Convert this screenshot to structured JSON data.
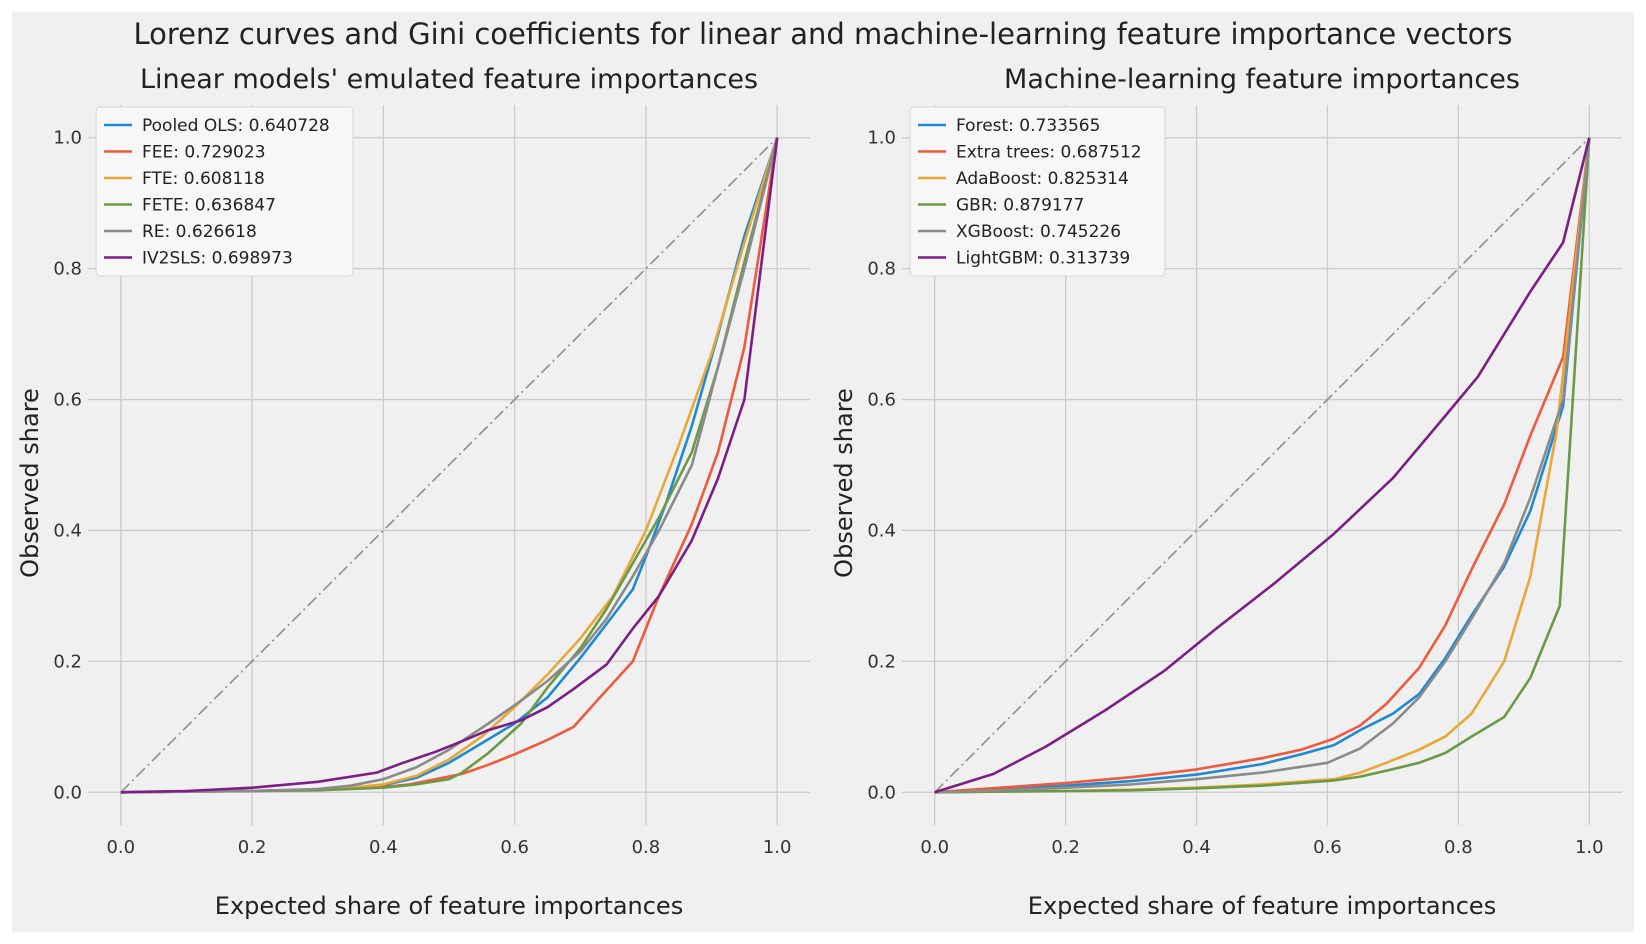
{
  "figure": {
    "title": "Lorenz curves and Gini coefficients for linear and machine-learning feature importance vectors",
    "colors": {
      "background": "#f0f0f0",
      "grid": "#cbcbcb",
      "diagonal": "#8e8e8e"
    }
  },
  "chart_data": [
    {
      "type": "line",
      "title": "Linear models' emulated feature importances",
      "xlabel": "Expected share of feature importances",
      "ylabel": "Observed share",
      "xlim": [
        -0.05,
        1.05
      ],
      "ylim": [
        -0.05,
        1.05
      ],
      "xticks": [
        0.0,
        0.2,
        0.4,
        0.6,
        0.8,
        1.0
      ],
      "yticks": [
        0.0,
        0.2,
        0.4,
        0.6,
        0.8,
        1.0
      ],
      "xtick_labels": [
        "0.0",
        "0.2",
        "0.4",
        "0.6",
        "0.8",
        "1.0"
      ],
      "ytick_labels": [
        "0.0",
        "0.2",
        "0.4",
        "0.6",
        "0.8",
        "1.0"
      ],
      "legend_position": "upper-left",
      "diagonal": {
        "x": [
          0,
          1
        ],
        "y": [
          0,
          1
        ],
        "style": "dash-dot"
      },
      "series": [
        {
          "name": "Pooled OLS: 0.640728",
          "color": "#1f8ad2",
          "x": [
            0,
            0.1,
            0.2,
            0.3,
            0.35,
            0.4,
            0.45,
            0.5,
            0.55,
            0.6,
            0.65,
            0.7,
            0.75,
            0.78,
            0.8,
            0.83,
            0.87,
            0.91,
            0.95,
            1.0
          ],
          "y": [
            0,
            0.001,
            0.002,
            0.004,
            0.007,
            0.011,
            0.022,
            0.045,
            0.075,
            0.105,
            0.145,
            0.205,
            0.27,
            0.31,
            0.36,
            0.44,
            0.56,
            0.7,
            0.85,
            1.0
          ]
        },
        {
          "name": "FEE: 0.729023",
          "color": "#ef5a3c",
          "x": [
            0,
            0.1,
            0.2,
            0.3,
            0.4,
            0.44,
            0.52,
            0.56,
            0.6,
            0.65,
            0.69,
            0.73,
            0.78,
            0.82,
            0.87,
            0.91,
            0.95,
            1.0
          ],
          "y": [
            0,
            0.001,
            0.002,
            0.004,
            0.008,
            0.012,
            0.028,
            0.042,
            0.058,
            0.08,
            0.1,
            0.145,
            0.2,
            0.3,
            0.41,
            0.52,
            0.68,
            1.0
          ]
        },
        {
          "name": "FTE: 0.608118",
          "color": "#e8a838",
          "x": [
            0,
            0.1,
            0.2,
            0.3,
            0.35,
            0.4,
            0.45,
            0.5,
            0.55,
            0.6,
            0.65,
            0.7,
            0.75,
            0.8,
            0.85,
            0.9,
            0.95,
            1.0
          ],
          "y": [
            0,
            0.001,
            0.002,
            0.004,
            0.007,
            0.012,
            0.025,
            0.05,
            0.085,
            0.13,
            0.18,
            0.235,
            0.3,
            0.4,
            0.53,
            0.67,
            0.84,
            1.0
          ]
        },
        {
          "name": "FETE: 0.636847",
          "color": "#6b9a47",
          "x": [
            0,
            0.1,
            0.2,
            0.3,
            0.4,
            0.45,
            0.5,
            0.52,
            0.56,
            0.61,
            0.65,
            0.7,
            0.74,
            0.78,
            0.82,
            0.87,
            0.91,
            0.95,
            1.0
          ],
          "y": [
            0,
            0.001,
            0.002,
            0.003,
            0.007,
            0.012,
            0.02,
            0.03,
            0.06,
            0.105,
            0.16,
            0.22,
            0.28,
            0.35,
            0.42,
            0.52,
            0.65,
            0.81,
            1.0
          ]
        },
        {
          "name": "RE: 0.626618",
          "color": "#8b8b8b",
          "x": [
            0,
            0.1,
            0.2,
            0.3,
            0.35,
            0.4,
            0.45,
            0.5,
            0.56,
            0.61,
            0.65,
            0.7,
            0.74,
            0.78,
            0.82,
            0.87,
            0.91,
            0.95,
            1.0
          ],
          "y": [
            0,
            0.001,
            0.002,
            0.005,
            0.01,
            0.02,
            0.038,
            0.065,
            0.105,
            0.14,
            0.17,
            0.215,
            0.265,
            0.33,
            0.4,
            0.5,
            0.65,
            0.8,
            1.0
          ]
        },
        {
          "name": "IV2SLS: 0.698973",
          "color": "#7b1f86",
          "x": [
            0,
            0.05,
            0.1,
            0.2,
            0.3,
            0.39,
            0.43,
            0.48,
            0.52,
            0.56,
            0.61,
            0.65,
            0.69,
            0.74,
            0.78,
            0.82,
            0.87,
            0.91,
            0.95,
            1.0
          ],
          "y": [
            0,
            0.001,
            0.002,
            0.007,
            0.016,
            0.03,
            0.045,
            0.062,
            0.078,
            0.095,
            0.11,
            0.13,
            0.158,
            0.195,
            0.25,
            0.3,
            0.385,
            0.48,
            0.6,
            1.0
          ]
        }
      ],
      "legend": [
        {
          "label": "Pooled OLS: 0.640728",
          "color": "#1f8ad2"
        },
        {
          "label": "FEE: 0.729023",
          "color": "#ef5a3c"
        },
        {
          "label": "FTE: 0.608118",
          "color": "#e8a838"
        },
        {
          "label": "FETE: 0.636847",
          "color": "#6b9a47"
        },
        {
          "label": "RE: 0.626618",
          "color": "#8b8b8b"
        },
        {
          "label": "IV2SLS: 0.698973",
          "color": "#7b1f86"
        }
      ]
    },
    {
      "type": "line",
      "title": "Machine-learning feature importances",
      "xlabel": "Expected share of feature importances",
      "ylabel": "Observed share",
      "xlim": [
        -0.05,
        1.05
      ],
      "ylim": [
        -0.05,
        1.05
      ],
      "xticks": [
        0.0,
        0.2,
        0.4,
        0.6,
        0.8,
        1.0
      ],
      "yticks": [
        0.0,
        0.2,
        0.4,
        0.6,
        0.8,
        1.0
      ],
      "xtick_labels": [
        "0.0",
        "0.2",
        "0.4",
        "0.6",
        "0.8",
        "1.0"
      ],
      "ytick_labels": [
        "0.0",
        "0.2",
        "0.4",
        "0.6",
        "0.8",
        "1.0"
      ],
      "legend_position": "upper-left",
      "diagonal": {
        "x": [
          0,
          1
        ],
        "y": [
          0,
          1
        ],
        "style": "dash-dot"
      },
      "series": [
        {
          "name": "Forest: 0.733565",
          "color": "#1f8ad2",
          "x": [
            0,
            0.1,
            0.2,
            0.3,
            0.4,
            0.5,
            0.56,
            0.61,
            0.65,
            0.7,
            0.74,
            0.78,
            0.82,
            0.87,
            0.91,
            0.96,
            1.0
          ],
          "y": [
            0,
            0.005,
            0.01,
            0.017,
            0.027,
            0.043,
            0.058,
            0.072,
            0.095,
            0.12,
            0.15,
            0.205,
            0.27,
            0.345,
            0.43,
            0.59,
            1.0
          ]
        },
        {
          "name": "Extra trees: 0.687512",
          "color": "#ef5a3c",
          "x": [
            0,
            0.1,
            0.2,
            0.3,
            0.4,
            0.5,
            0.56,
            0.61,
            0.65,
            0.69,
            0.74,
            0.78,
            0.82,
            0.87,
            0.91,
            0.96,
            1.0
          ],
          "y": [
            0,
            0.007,
            0.014,
            0.023,
            0.035,
            0.052,
            0.065,
            0.082,
            0.102,
            0.135,
            0.19,
            0.255,
            0.34,
            0.44,
            0.545,
            0.665,
            1.0
          ]
        },
        {
          "name": "AdaBoost: 0.825314",
          "color": "#e8a838",
          "x": [
            0,
            0.1,
            0.2,
            0.3,
            0.4,
            0.5,
            0.61,
            0.65,
            0.69,
            0.74,
            0.78,
            0.82,
            0.87,
            0.91,
            0.95,
            1.0
          ],
          "y": [
            0,
            0.001,
            0.002,
            0.004,
            0.007,
            0.012,
            0.02,
            0.03,
            0.045,
            0.065,
            0.085,
            0.12,
            0.2,
            0.33,
            0.55,
            1.0
          ]
        },
        {
          "name": "GBR: 0.879177",
          "color": "#6b9a47",
          "x": [
            0,
            0.1,
            0.2,
            0.3,
            0.4,
            0.5,
            0.61,
            0.65,
            0.69,
            0.74,
            0.78,
            0.82,
            0.87,
            0.91,
            0.955,
            1.0
          ],
          "y": [
            0,
            0.001,
            0.002,
            0.003,
            0.006,
            0.01,
            0.018,
            0.024,
            0.033,
            0.045,
            0.06,
            0.085,
            0.115,
            0.175,
            0.285,
            1.0
          ]
        },
        {
          "name": "XGBoost: 0.745226",
          "color": "#8b8b8b",
          "x": [
            0,
            0.1,
            0.2,
            0.3,
            0.4,
            0.5,
            0.6,
            0.65,
            0.7,
            0.74,
            0.78,
            0.82,
            0.87,
            0.91,
            0.96,
            1.0
          ],
          "y": [
            0,
            0.003,
            0.007,
            0.012,
            0.02,
            0.03,
            0.045,
            0.067,
            0.105,
            0.145,
            0.2,
            0.265,
            0.35,
            0.45,
            0.6,
            1.0
          ]
        },
        {
          "name": "LightGBM: 0.313739",
          "color": "#7b1f86",
          "x": [
            0,
            0.09,
            0.17,
            0.26,
            0.35,
            0.43,
            0.52,
            0.61,
            0.7,
            0.78,
            0.83,
            0.87,
            0.91,
            0.96,
            1.0
          ],
          "y": [
            0,
            0.028,
            0.07,
            0.125,
            0.185,
            0.25,
            0.32,
            0.395,
            0.48,
            0.575,
            0.635,
            0.7,
            0.765,
            0.84,
            1.0
          ]
        }
      ],
      "legend": [
        {
          "label": "Forest: 0.733565",
          "color": "#1f8ad2"
        },
        {
          "label": "Extra trees: 0.687512",
          "color": "#ef5a3c"
        },
        {
          "label": "AdaBoost: 0.825314",
          "color": "#e8a838"
        },
        {
          "label": "GBR: 0.879177",
          "color": "#6b9a47"
        },
        {
          "label": "XGBoost: 0.745226",
          "color": "#8b8b8b"
        },
        {
          "label": "LightGBM: 0.313739",
          "color": "#7b1f86"
        }
      ]
    }
  ]
}
